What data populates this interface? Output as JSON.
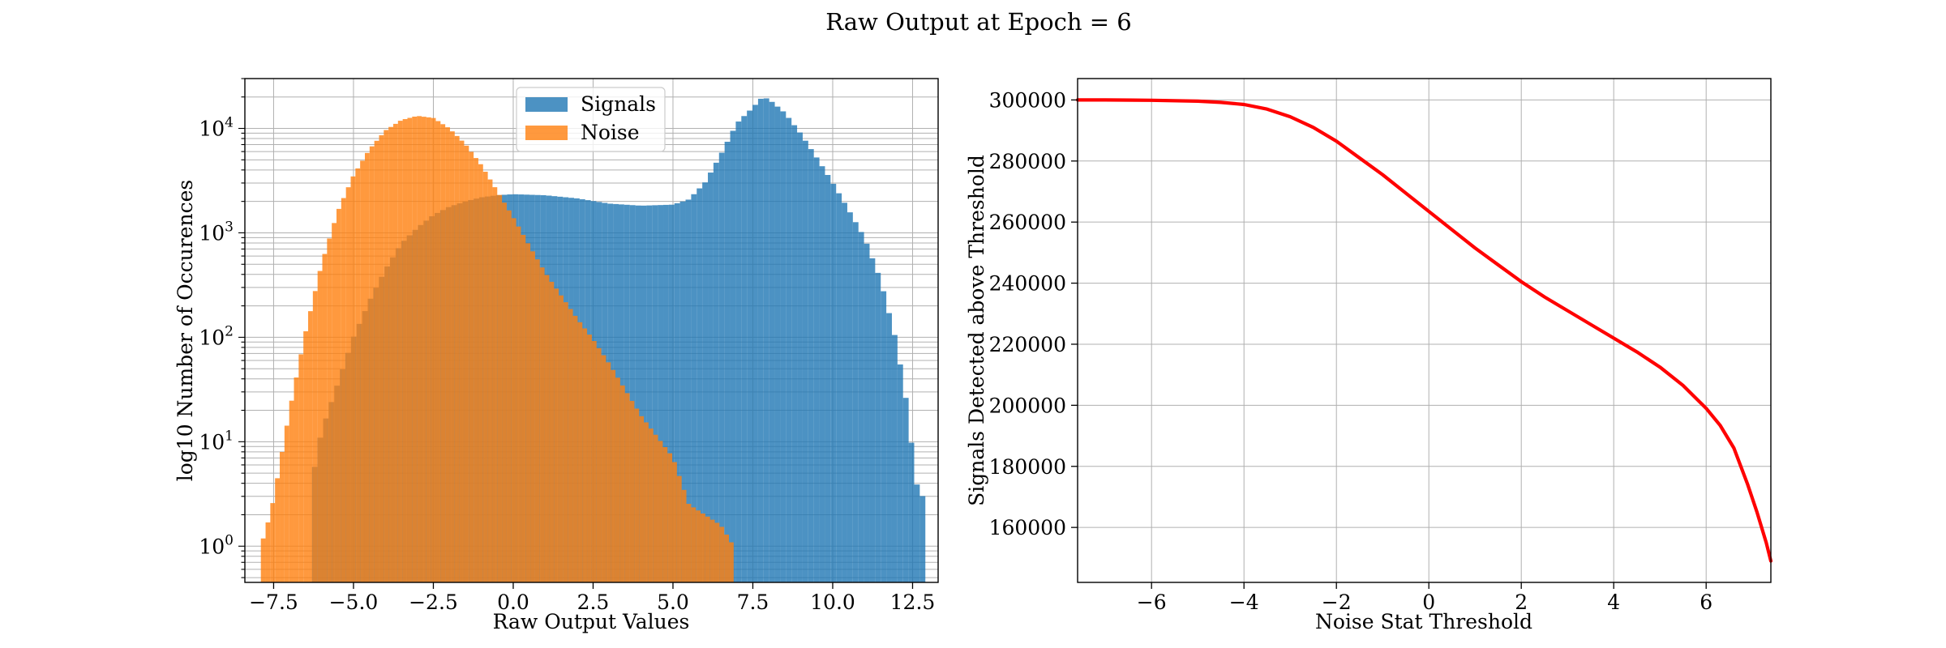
{
  "figure": {
    "title": "Raw Output at Epoch = 6"
  },
  "colors": {
    "signals": "#1f77b4",
    "noise": "#ff7f0e",
    "threshold_line": "#ff0000",
    "grid": "#b0b0b0"
  },
  "chart_data": [
    {
      "type": "bar",
      "subtype": "histogram",
      "xlabel": "Raw Output Values",
      "ylabel": "log10 Number of Occurences",
      "xlim": [
        -8.4,
        13.3
      ],
      "ylim": [
        0.45,
        30000
      ],
      "yscale": "log",
      "grid": true,
      "legend_position": "top-center",
      "xticks": [
        -7.5,
        -5.0,
        -2.5,
        0.0,
        2.5,
        5.0,
        7.5,
        10.0,
        12.5
      ],
      "xtick_labels": [
        "−7.5",
        "−5.0",
        "−2.5",
        "0.0",
        "2.5",
        "5.0",
        "7.5",
        "10.0",
        "12.5"
      ],
      "yticks": [
        1,
        10,
        100,
        1000,
        10000
      ],
      "ytick_labels": [
        {
          "base": "10",
          "exp": "0"
        },
        {
          "base": "10",
          "exp": "1"
        },
        {
          "base": "10",
          "exp": "2"
        },
        {
          "base": "10",
          "exp": "3"
        },
        {
          "base": "10",
          "exp": "4"
        }
      ],
      "series": [
        {
          "name": "Signals",
          "bin_edges_range": [
            -6.3,
            12.9
          ],
          "bin_count": 110,
          "profile": [
            [
              -6.3,
              0
            ],
            [
              -6.25,
              0.7
            ],
            [
              -6.0,
              1.1
            ],
            [
              -5.5,
              1.55
            ],
            [
              -5.0,
              2.0
            ],
            [
              -4.5,
              2.35
            ],
            [
              -4.0,
              2.65
            ],
            [
              -3.5,
              2.9
            ],
            [
              -3.0,
              3.05
            ],
            [
              -2.5,
              3.17
            ],
            [
              -2.0,
              3.25
            ],
            [
              -1.5,
              3.3
            ],
            [
              -1.0,
              3.34
            ],
            [
              -0.5,
              3.36
            ],
            [
              0.0,
              3.37
            ],
            [
              1.0,
              3.36
            ],
            [
              2.0,
              3.33
            ],
            [
              3.0,
              3.28
            ],
            [
              4.0,
              3.26
            ],
            [
              5.0,
              3.27
            ],
            [
              5.5,
              3.32
            ],
            [
              6.0,
              3.48
            ],
            [
              6.5,
              3.75
            ],
            [
              7.0,
              4.05
            ],
            [
              7.5,
              4.2
            ],
            [
              7.8,
              4.3
            ],
            [
              8.0,
              4.28
            ],
            [
              8.5,
              4.15
            ],
            [
              9.0,
              3.95
            ],
            [
              9.5,
              3.72
            ],
            [
              10.0,
              3.48
            ],
            [
              10.5,
              3.22
            ],
            [
              11.0,
              2.95
            ],
            [
              11.5,
              2.55
            ],
            [
              12.0,
              1.95
            ],
            [
              12.3,
              1.4
            ],
            [
              12.5,
              0.9
            ],
            [
              12.6,
              0.6
            ],
            [
              12.8,
              0.55
            ],
            [
              12.9,
              0
            ]
          ]
        },
        {
          "name": "Noise",
          "bin_edges_range": [
            -7.9,
            6.9
          ],
          "bin_count": 100,
          "profile": [
            [
              -7.9,
              0
            ],
            [
              -7.7,
              0.2
            ],
            [
              -7.5,
              0.45
            ],
            [
              -7.0,
              1.3
            ],
            [
              -6.5,
              2.05
            ],
            [
              -6.0,
              2.7
            ],
            [
              -5.5,
              3.2
            ],
            [
              -5.0,
              3.55
            ],
            [
              -4.5,
              3.8
            ],
            [
              -4.0,
              3.98
            ],
            [
              -3.5,
              4.08
            ],
            [
              -3.0,
              4.12
            ],
            [
              -2.5,
              4.1
            ],
            [
              -2.0,
              4.0
            ],
            [
              -1.5,
              3.85
            ],
            [
              -1.0,
              3.65
            ],
            [
              -0.5,
              3.4
            ],
            [
              0.0,
              3.15
            ],
            [
              0.5,
              2.88
            ],
            [
              1.0,
              2.62
            ],
            [
              1.5,
              2.4
            ],
            [
              2.0,
              2.18
            ],
            [
              2.5,
              1.98
            ],
            [
              3.0,
              1.75
            ],
            [
              3.5,
              1.5
            ],
            [
              4.0,
              1.25
            ],
            [
              4.5,
              1.05
            ],
            [
              5.0,
              0.85
            ],
            [
              5.5,
              0.4
            ],
            [
              6.0,
              0.3
            ],
            [
              6.5,
              0.2
            ],
            [
              6.9,
              0
            ]
          ]
        }
      ]
    },
    {
      "type": "line",
      "xlabel": "Noise Stat Threshold",
      "ylabel": "Signals Detected above Threshold",
      "xlim": [
        -7.6,
        7.4
      ],
      "ylim": [
        142000,
        307000
      ],
      "grid": true,
      "xticks": [
        -6,
        -4,
        -2,
        0,
        2,
        4,
        6
      ],
      "xtick_labels": [
        "−6",
        "−4",
        "−2",
        "0",
        "2",
        "4",
        "6"
      ],
      "yticks": [
        160000,
        180000,
        200000,
        220000,
        240000,
        260000,
        280000,
        300000
      ],
      "ytick_labels": [
        "160000",
        "180000",
        "200000",
        "220000",
        "240000",
        "260000",
        "280000",
        "300000"
      ],
      "x": [
        -7.6,
        -7.0,
        -6.0,
        -5.0,
        -4.5,
        -4.0,
        -3.5,
        -3.0,
        -2.5,
        -2.0,
        -1.5,
        -1.0,
        -0.5,
        0.0,
        0.5,
        1.0,
        1.5,
        2.0,
        2.5,
        3.0,
        3.5,
        4.0,
        4.5,
        5.0,
        5.5,
        6.0,
        6.3,
        6.6,
        6.9,
        7.1,
        7.3,
        7.4
      ],
      "y": [
        300000,
        300000,
        299900,
        299600,
        299200,
        298500,
        297000,
        294500,
        291000,
        286500,
        281000,
        275500,
        269500,
        263500,
        257500,
        251500,
        246000,
        240500,
        235500,
        231000,
        226500,
        222000,
        217500,
        212500,
        206500,
        199000,
        193500,
        186000,
        174000,
        165000,
        155000,
        149000
      ]
    }
  ]
}
